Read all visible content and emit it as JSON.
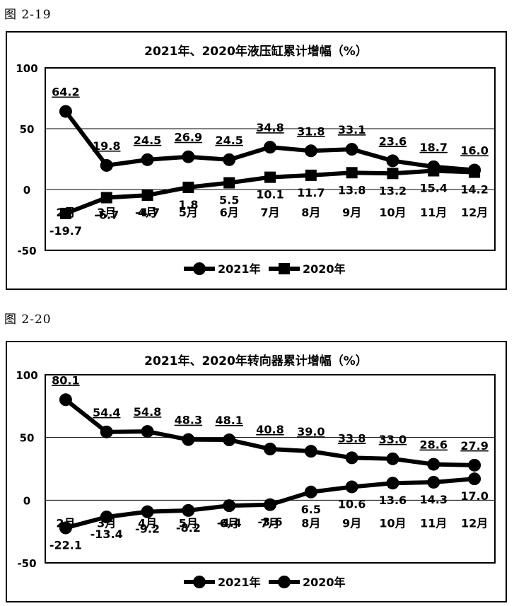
{
  "figures": [
    {
      "label": "图 2-19"
    },
    {
      "label": "图 2-20"
    }
  ],
  "chart_data": [
    {
      "type": "line",
      "title": "2021年、2020年液压缸累计增幅（%）",
      "categories": [
        "2月",
        "3月",
        "4月",
        "5月",
        "6月",
        "7月",
        "8月",
        "9月",
        "10月",
        "11月",
        "12月"
      ],
      "series": [
        {
          "name": "2021年",
          "values": [
            64.2,
            19.8,
            24.5,
            26.9,
            24.5,
            34.8,
            31.8,
            33.1,
            23.6,
            18.7,
            16.0
          ],
          "labels": [
            "64.2",
            "19.8",
            "24.5",
            "26.9",
            "24.5",
            "34.8",
            "31.8",
            "33.1",
            "23.6",
            "18.7",
            "16.0"
          ],
          "marker": "circle"
        },
        {
          "name": "2020年",
          "values": [
            -19.7,
            -6.7,
            -4.7,
            1.8,
            5.5,
            10.1,
            11.7,
            13.8,
            13.2,
            15.4,
            14.2
          ],
          "labels": [
            "-19.7",
            "-6.7",
            "-4.7",
            "1.8",
            "5.5",
            "10.1",
            "11.7",
            "13.8",
            "13.2",
            "15.4",
            "14.2"
          ],
          "marker": "square"
        }
      ],
      "ylim": [
        -50,
        100
      ],
      "yticks": [
        "100",
        "50",
        "0",
        "-50"
      ],
      "grid": true,
      "legend": "bottom",
      "colors": {
        "line": "#000000"
      }
    },
    {
      "type": "line",
      "title": "2021年、2020年转向器累计增幅（%）",
      "categories": [
        "2月",
        "3月",
        "4月",
        "5月",
        "6月",
        "7月",
        "8月",
        "9月",
        "10月",
        "11月",
        "12月"
      ],
      "series": [
        {
          "name": "2021年",
          "values": [
            80.1,
            54.4,
            54.8,
            48.3,
            48.1,
            40.8,
            39.0,
            33.8,
            33.0,
            28.6,
            27.9
          ],
          "labels": [
            "80.1",
            "54.4",
            "54.8",
            "48.3",
            "48.1",
            "40.8",
            "39.0",
            "33.8",
            "33.0",
            "28.6",
            "27.9"
          ],
          "marker": "circle"
        },
        {
          "name": "2020年",
          "values": [
            -22.1,
            -13.4,
            -9.2,
            -8.2,
            -4.4,
            -3.6,
            6.5,
            10.6,
            13.6,
            14.3,
            17.0
          ],
          "labels": [
            "-22.1",
            "-13.4",
            "-9.2",
            "-8.2",
            "-4.4",
            "-3.6",
            "6.5",
            "10.6",
            "13.6",
            "14.3",
            "17.0"
          ],
          "marker": "circle"
        }
      ],
      "ylim": [
        -50,
        100
      ],
      "yticks": [
        "100",
        "50",
        "0",
        "-50"
      ],
      "grid": true,
      "legend": "bottom",
      "colors": {
        "line": "#000000"
      }
    }
  ]
}
